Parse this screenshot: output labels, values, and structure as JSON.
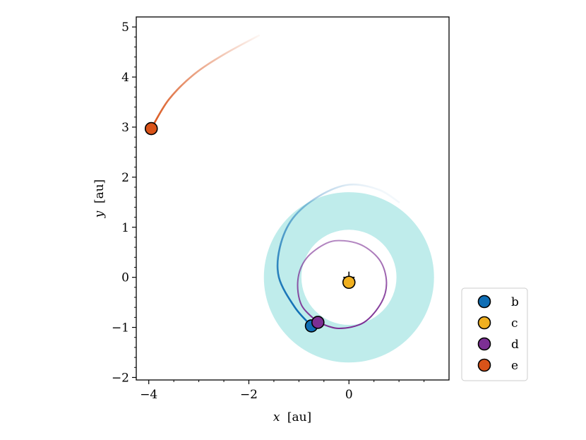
{
  "chart_data": {
    "type": "scatter",
    "title": "",
    "xlabel_var": "x",
    "xlabel_unit": "[au]",
    "ylabel_var": "y",
    "ylabel_unit": "[au]",
    "xlim": [
      -4.25,
      2.0
    ],
    "ylim": [
      -2.05,
      5.2
    ],
    "xticks": [
      -4,
      -2,
      0
    ],
    "xtick_labels": [
      "−4",
      "−2",
      "0"
    ],
    "yticks": [
      -2,
      -1,
      0,
      1,
      2,
      3,
      4,
      5
    ],
    "ytick_labels": [
      "−2",
      "−1",
      "0",
      "1",
      "2",
      "3",
      "4",
      "5"
    ],
    "star": {
      "x": 0.0,
      "y": 0.0
    },
    "annulus": {
      "inner_radius": 0.95,
      "outer_radius": 1.7,
      "color": "#bfeceb"
    },
    "series": [
      {
        "name": "b",
        "color": "#0f6eb5",
        "position": {
          "x": -0.75,
          "y": -0.97
        },
        "trail": [
          {
            "x": -0.75,
            "y": -0.97
          },
          {
            "x": -1.08,
            "y": -0.6
          },
          {
            "x": -1.4,
            "y": 0.0
          },
          {
            "x": -1.38,
            "y": 0.6
          },
          {
            "x": -1.12,
            "y": 1.18
          },
          {
            "x": -0.6,
            "y": 1.62
          },
          {
            "x": 0.0,
            "y": 1.85
          },
          {
            "x": 0.6,
            "y": 1.75
          },
          {
            "x": 1.0,
            "y": 1.5
          }
        ]
      },
      {
        "name": "c",
        "color": "#f0b020",
        "position": {
          "x": 0.0,
          "y": -0.1
        },
        "trail": []
      },
      {
        "name": "d",
        "color": "#7c2f94",
        "position": {
          "x": -0.62,
          "y": -0.9
        },
        "trail": [
          {
            "x": -0.62,
            "y": -0.9
          },
          {
            "x": -0.95,
            "y": -0.55
          },
          {
            "x": -1.02,
            "y": -0.05
          },
          {
            "x": -0.85,
            "y": 0.38
          },
          {
            "x": -0.45,
            "y": 0.68
          },
          {
            "x": -0.1,
            "y": 0.73
          },
          {
            "x": 0.3,
            "y": 0.62
          },
          {
            "x": 0.63,
            "y": 0.32
          },
          {
            "x": 0.75,
            "y": -0.1
          },
          {
            "x": 0.65,
            "y": -0.5
          },
          {
            "x": 0.3,
            "y": -0.9
          },
          {
            "x": -0.2,
            "y": -1.02
          },
          {
            "x": -0.62,
            "y": -0.9
          }
        ]
      },
      {
        "name": "e",
        "color": "#d95319",
        "position": {
          "x": -3.95,
          "y": 2.97
        },
        "trail": [
          {
            "x": -3.95,
            "y": 2.97
          },
          {
            "x": -3.6,
            "y": 3.55
          },
          {
            "x": -3.1,
            "y": 4.05
          },
          {
            "x": -2.5,
            "y": 4.45
          },
          {
            "x": -1.8,
            "y": 4.83
          }
        ]
      }
    ],
    "legend": {
      "placement": "lower-right, outside",
      "entries": [
        "b",
        "c",
        "d",
        "e"
      ]
    }
  }
}
